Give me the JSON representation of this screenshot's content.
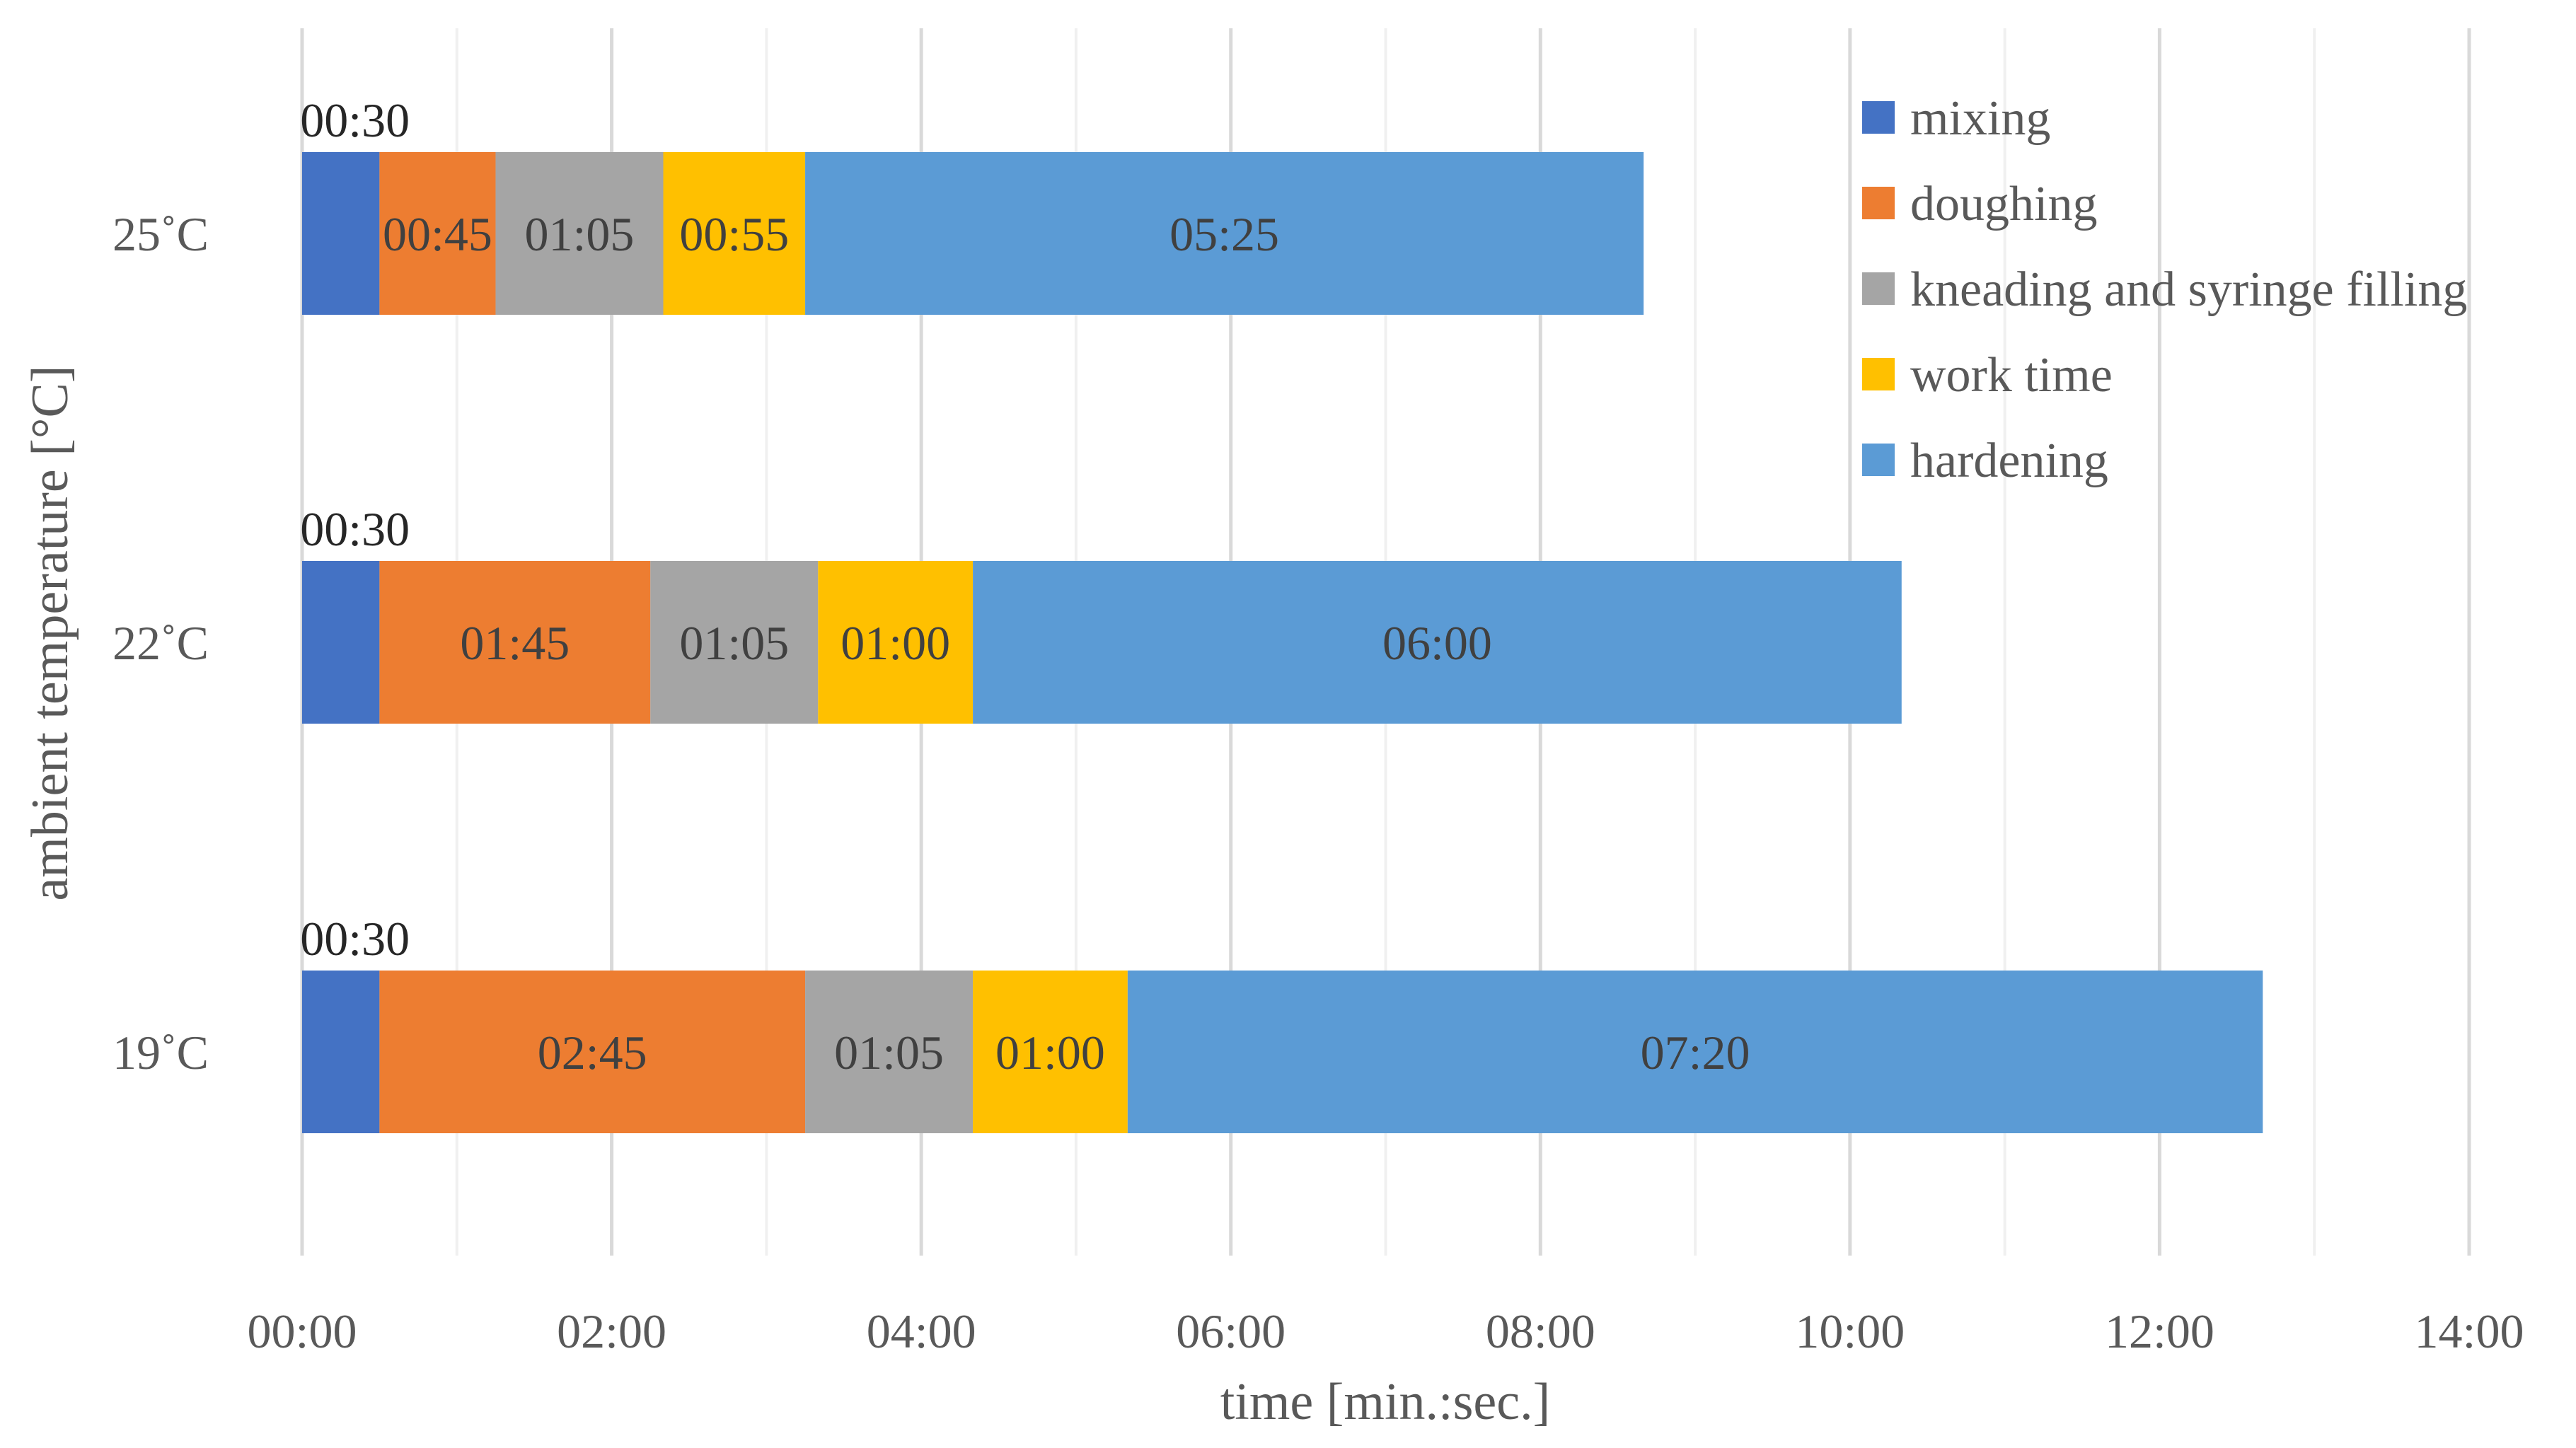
{
  "chart_data": {
    "type": "bar",
    "orientation": "horizontal",
    "stacked": true,
    "title": "",
    "xlabel": "time [min.:sec.]",
    "ylabel": "ambient temperature [°C]",
    "xlim": [
      0,
      840
    ],
    "x_tick_values": [
      0,
      120,
      240,
      360,
      480,
      600,
      720,
      840
    ],
    "x_tick_labels": [
      "00:00",
      "02:00",
      "04:00",
      "06:00",
      "08:00",
      "10:00",
      "12:00",
      "14:00"
    ],
    "x_unit": "seconds",
    "grid": "vertical major and minor",
    "categories": [
      "25˚C",
      "22˚C",
      "19˚C"
    ],
    "series": [
      {
        "name": "mixing",
        "color": "#4472C4",
        "values": [
          30,
          30,
          30
        ],
        "labels": [
          "00:30",
          "00:30",
          "00:30"
        ]
      },
      {
        "name": "doughing",
        "color": "#ED7D31",
        "values": [
          45,
          105,
          165
        ],
        "labels": [
          "00:45",
          "01:45",
          "02:45"
        ]
      },
      {
        "name": "kneading and syringe filling",
        "color": "#A5A5A5",
        "values": [
          65,
          65,
          65
        ],
        "labels": [
          "01:05",
          "01:05",
          "01:05"
        ]
      },
      {
        "name": "work time",
        "color": "#FFC000",
        "values": [
          55,
          60,
          60
        ],
        "labels": [
          "00:55",
          "01:00",
          "01:00"
        ]
      },
      {
        "name": "hardening",
        "color": "#5B9BD5",
        "values": [
          325,
          360,
          440
        ],
        "labels": [
          "05:25",
          "06:00",
          "07:20"
        ]
      }
    ],
    "legend_position": "top-right"
  }
}
